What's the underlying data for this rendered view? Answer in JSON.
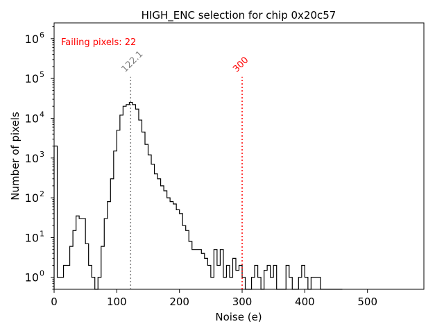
{
  "chart_data": {
    "type": "histogram",
    "title": "HIGH_ENC selection for chip 0x20c57",
    "xlabel": "Noise (e)",
    "ylabel": "Number of pixels",
    "xlim": [
      0,
      590
    ],
    "ylim": [
      0.5,
      2500000
    ],
    "yscale": "log",
    "grid": false,
    "x_ticks": [
      0,
      100,
      200,
      300,
      400,
      500
    ],
    "x_tick_labels": [
      "0",
      "100",
      "200",
      "300",
      "400",
      "500"
    ],
    "y_ticks": [
      1,
      10,
      100,
      1000,
      10000,
      100000,
      1000000
    ],
    "y_tick_labels": [
      "10^0",
      "10^1",
      "10^2",
      "10^3",
      "10^4",
      "10^5",
      "10^6"
    ],
    "bin_width": 5,
    "bin_start": 0,
    "counts": [
      2000,
      1,
      1,
      2,
      2,
      6,
      15,
      35,
      30,
      30,
      7,
      2,
      1,
      0.5,
      1,
      6,
      30,
      80,
      300,
      1500,
      5000,
      12000,
      20000,
      22000,
      25000,
      22000,
      17000,
      9000,
      4500,
      2200,
      1200,
      700,
      400,
      300,
      200,
      150,
      100,
      80,
      70,
      50,
      40,
      20,
      15,
      8,
      5,
      5,
      5,
      4,
      3,
      2,
      1,
      5,
      2,
      5,
      1,
      2,
      1,
      3,
      1.5,
      2,
      1,
      0.5,
      0.5,
      1,
      2,
      1,
      0.5,
      1.5,
      2,
      1,
      2,
      0.5,
      0.5,
      0.5,
      2,
      1,
      0.5,
      0.5,
      1,
      2,
      1,
      0.5,
      1,
      1,
      1,
      0.5,
      0.5,
      0.5,
      0.5,
      0.5,
      0.5,
      0.5
    ],
    "annotations": {
      "failing_text": "Failing pixels: 22",
      "failing_color": "#ff0000",
      "mean_line": {
        "x": 122.1,
        "label": "122.1",
        "color": "#808080"
      },
      "threshold_line": {
        "x": 300,
        "label": "300",
        "color": "#ff0000"
      }
    },
    "line_color": "#000000"
  }
}
